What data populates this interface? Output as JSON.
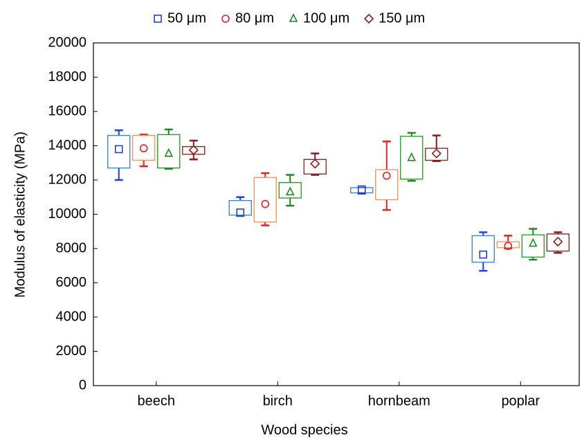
{
  "chart_data": {
    "type": "box",
    "x_label": "Wood species",
    "y_label": "Modulus of elasticity  (MPa)",
    "categories": [
      "beech",
      "birch",
      "hornbeam",
      "poplar"
    ],
    "ylim": [
      0,
      20000
    ],
    "yticks": [
      0,
      2000,
      4000,
      6000,
      8000,
      10000,
      12000,
      14000,
      16000,
      18000,
      20000
    ],
    "grid": false,
    "legend": "top",
    "series": [
      {
        "name": "50 μm",
        "marker": "square",
        "color": "#1f3fe6",
        "box_color": "#2a7ee8",
        "min": [
          12000,
          9900,
          11200,
          6700
        ],
        "q1": [
          12700,
          9950,
          11250,
          7200
        ],
        "mean": [
          13800,
          10100,
          11450,
          7650
        ],
        "q3": [
          14600,
          10800,
          11550,
          8750
        ],
        "max": [
          14900,
          11000,
          11550,
          8950
        ]
      },
      {
        "name": "80 μm",
        "marker": "circle",
        "color": "#e82020",
        "box_color": "#ff8a4c",
        "min": [
          12800,
          9350,
          10250,
          8000
        ],
        "q1": [
          13150,
          9550,
          10850,
          8050
        ],
        "mean": [
          13850,
          10600,
          12250,
          8150
        ],
        "q3": [
          14600,
          12150,
          12600,
          8400
        ],
        "max": [
          14650,
          12400,
          14250,
          8750
        ]
      },
      {
        "name": "100 μm",
        "marker": "triangle",
        "color": "#1a8a1a",
        "box_color": "#1a9a1a",
        "min": [
          12650,
          10500,
          11950,
          7350
        ],
        "q1": [
          12700,
          10950,
          12050,
          7500
        ],
        "mean": [
          13550,
          11300,
          13300,
          8300
        ],
        "q3": [
          14650,
          11850,
          14550,
          8800
        ],
        "max": [
          14950,
          12300,
          14750,
          9150
        ]
      },
      {
        "name": "150 μm",
        "marker": "diamond",
        "color": "#8b1a1a",
        "box_color": "#8b1a1a",
        "min": [
          13200,
          12300,
          13100,
          7750
        ],
        "q1": [
          13500,
          12350,
          13150,
          7850
        ],
        "mean": [
          13750,
          12950,
          13550,
          8400
        ],
        "q3": [
          13950,
          13200,
          13850,
          8850
        ],
        "max": [
          14300,
          13550,
          14600,
          8950
        ]
      }
    ]
  }
}
